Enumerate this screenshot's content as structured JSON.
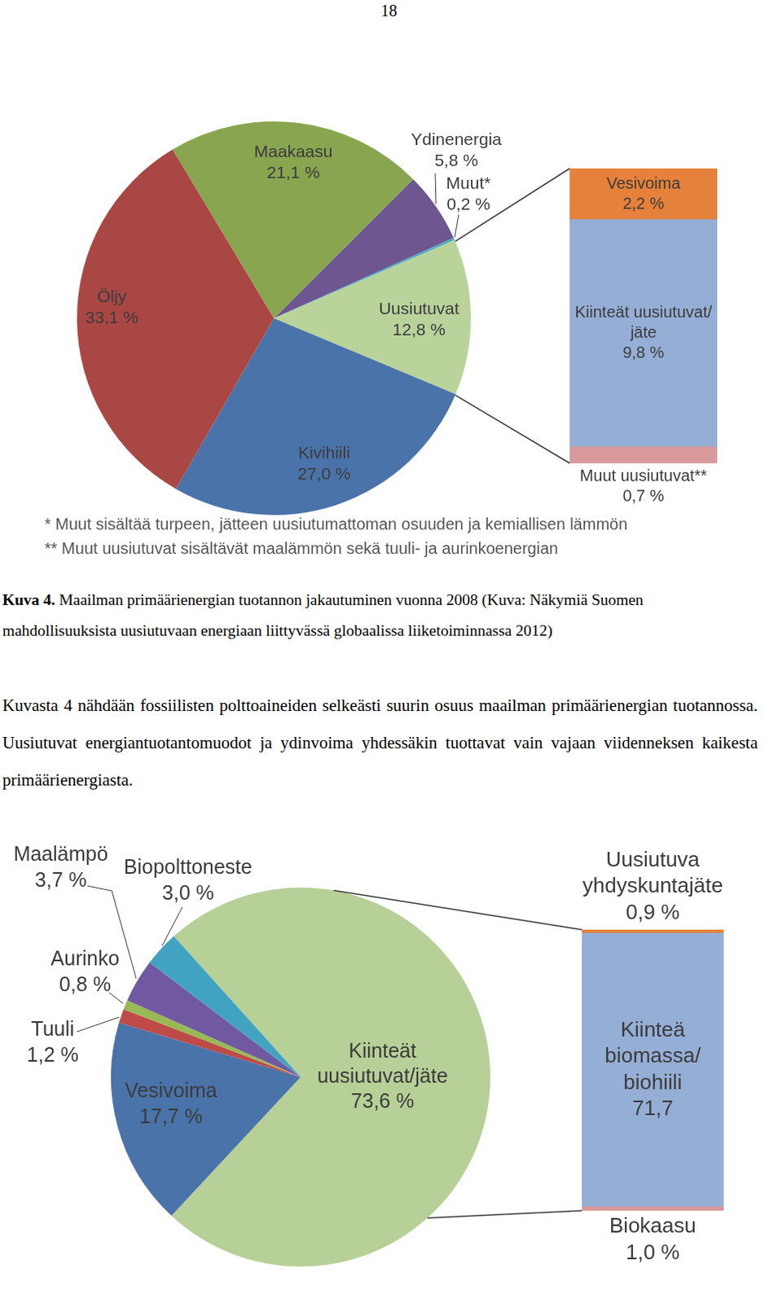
{
  "page_number": "18",
  "chart_data": [
    {
      "type": "pie",
      "categories": [
        "Ydinenergia",
        "Muut*",
        "Uusiutuvat",
        "Kivihiili",
        "Öljy",
        "Maakaasu"
      ],
      "values": [
        5.8,
        0.2,
        12.8,
        27.0,
        33.1,
        21.1
      ],
      "value_labels": [
        "5,8 %",
        "0,2 %",
        "12,8 %",
        "27,0 %",
        "33,1 %",
        "21,1 %"
      ],
      "colors": [
        "#6e5691",
        "#4bacc6",
        "#b9d39b",
        "#4a73a9",
        "#a94744",
        "#89a550"
      ],
      "data_labels": true,
      "notes": [
        "* Muut sisältää turpeen, jätteen uusiutumattoman osuuden ja kemiallisen lämmön",
        "** Muut uusiutuvat sisältävät maalämmön sekä tuuli- ja aurinkoenergian"
      ]
    },
    {
      "type": "bar",
      "stacked": true,
      "data_labels": true,
      "tick_labels": false,
      "categories": [
        null
      ],
      "series": [
        {
          "name": "Vesivoima",
          "color": "#e5813a",
          "values": [
            2.2
          ],
          "value_labels": [
            "2,2 %"
          ]
        },
        {
          "name": "Kiinteät uusiutuvat/jäte",
          "color": "#95aed5",
          "values": [
            9.8
          ],
          "value_labels": [
            "9,8 %"
          ]
        },
        {
          "name": "Muut uusiutuvat**",
          "color": "#d89a9c",
          "values": [
            0.7
          ],
          "value_labels": [
            "0,7 %"
          ]
        }
      ]
    },
    {
      "type": "pie",
      "categories": [
        "Kiinteät uusiutuvat/jäte",
        "Vesivoima",
        "Tuuli",
        "Aurinko",
        "Maalämpö",
        "Biopolttoneste"
      ],
      "values": [
        73.6,
        17.7,
        1.2,
        0.8,
        3.7,
        3.0
      ],
      "value_labels": [
        "73,6 %",
        "17,7 %",
        "1,2 %",
        "0,8 %",
        "3,7 %",
        "3,0 %"
      ],
      "colors": [
        "#b7d097",
        "#4a73a9",
        "#be4b48",
        "#98b954",
        "#7059a0",
        "#42a3c0"
      ],
      "data_labels": true
    },
    {
      "type": "bar",
      "stacked": true,
      "data_labels": true,
      "tick_labels": false,
      "categories": [
        null
      ],
      "series": [
        {
          "name": "Uusiutuva yhdyskuntajäte",
          "color": "#e5813a",
          "values": [
            0.9
          ],
          "value_labels": [
            "0,9 %"
          ]
        },
        {
          "name": "Kiinteä biomassa/biohiili",
          "color": "#95aed5",
          "values": [
            71.7
          ],
          "value_labels": [
            "71,7"
          ]
        },
        {
          "name": "Biokaasu",
          "color": "#d89a9c",
          "values": [
            1.0
          ],
          "value_labels": [
            "1,0 %"
          ]
        }
      ]
    }
  ],
  "caption": {
    "label": "Kuva 4.",
    "text": "Maailman primäärienergian tuotannon jakautuminen vuonna 2008 (Kuva: Näkymiä Suomen mahdollisuuksista uusiutuvaan energiaan liittyvässä globaalissa liiketoiminnassa 2012)"
  },
  "paragraph": "Kuvasta 4 nähdään fossiilisten polttoaineiden selkeästi suurin osuus maailman primäärienergian tuotannossa. Uusiutuvat energiantuotantomuodot ja ydinvoima yhdessäkin tuottavat vain vajaan viidenneksen kaikesta primäärienergiasta."
}
